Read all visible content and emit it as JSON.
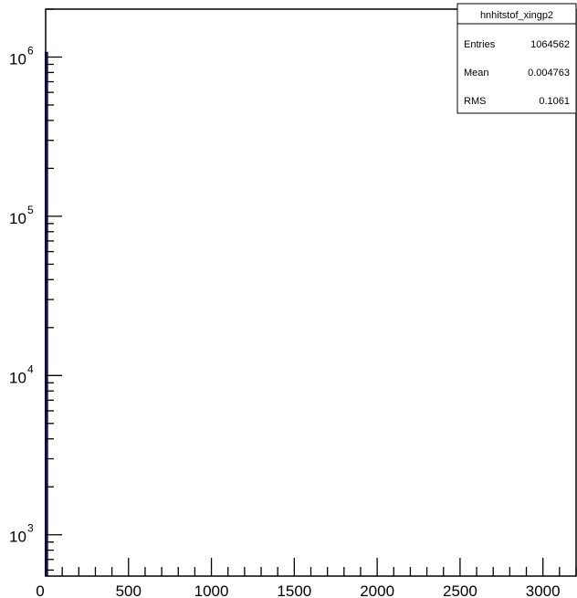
{
  "stats_box": {
    "title": "hnhitstof_xingp2",
    "rows": [
      {
        "label": "Entries",
        "value": "1064562"
      },
      {
        "label": "Mean",
        "value": "0.004763"
      },
      {
        "label": "RMS",
        "value": "0.1061"
      }
    ]
  },
  "chart_data": {
    "type": "bar",
    "title": "",
    "xlabel": "",
    "ylabel": "",
    "xlim": [
      0,
      3200
    ],
    "ylim": [
      550,
      2000000
    ],
    "y_scale": "log",
    "grid": false,
    "x_ticks": [
      0,
      500,
      1000,
      1500,
      2000,
      2500,
      3000
    ],
    "x_tick_labels": [
      "0",
      "500",
      "1000",
      "1500",
      "2000",
      "2500",
      "3000"
    ],
    "y_ticks": [
      1000,
      10000,
      100000,
      1000000
    ],
    "y_tick_labels": [
      {
        "base": "10",
        "exp": "3"
      },
      {
        "base": "10",
        "exp": "4"
      },
      {
        "base": "10",
        "exp": "5"
      },
      {
        "base": "10",
        "exp": "6"
      }
    ],
    "series": [
      {
        "color": "#1f1f8f",
        "x": [
          0,
          10
        ],
        "values": [
          1064562,
          1064562
        ]
      }
    ]
  }
}
